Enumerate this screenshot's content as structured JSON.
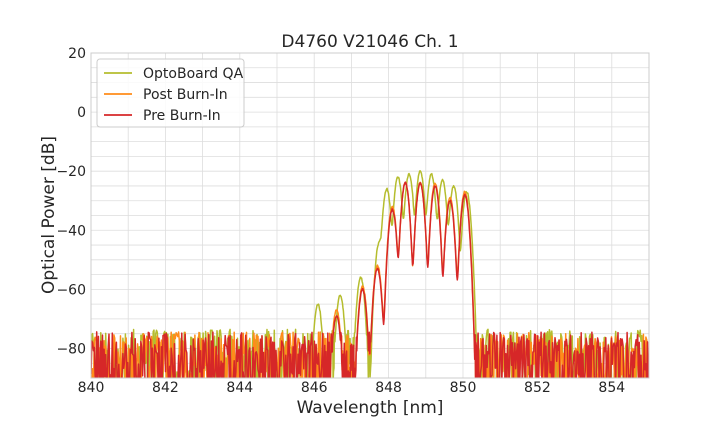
{
  "chart_data": {
    "type": "line",
    "title": "D4760 V21046 Ch. 1",
    "xlabel": "Wavelength [nm]",
    "ylabel": "Optical Power [dB]",
    "xlim": [
      840,
      855
    ],
    "ylim": [
      -90,
      20
    ],
    "xticks": [
      840,
      842,
      844,
      846,
      848,
      850,
      852,
      854
    ],
    "xtick_labels": [
      "840",
      "842",
      "844",
      "846",
      "848",
      "850",
      "852",
      "854"
    ],
    "yticks": [
      20,
      0,
      -20,
      -40,
      -60,
      -80
    ],
    "ytick_labels": [
      "20",
      "0",
      "−20",
      "−40",
      "−60",
      "−80"
    ],
    "grid": true,
    "legend_position": "top-left",
    "series": [
      {
        "name": "OptoBoard QA",
        "color": "#b5bd2e",
        "noise_floor": -79,
        "peaks": [
          [
            846.1,
            -65
          ],
          [
            846.7,
            -62
          ],
          [
            847.25,
            -56
          ],
          [
            847.75,
            -44
          ],
          [
            847.95,
            -26
          ],
          [
            848.25,
            -22
          ],
          [
            848.55,
            -21
          ],
          [
            848.85,
            -20
          ],
          [
            849.15,
            -21
          ],
          [
            849.45,
            -23
          ],
          [
            849.75,
            -25
          ],
          [
            850.1,
            -27
          ]
        ]
      },
      {
        "name": "Post Burn-In",
        "color": "#ff8c1a",
        "noise_floor": -80,
        "peaks": [
          [
            846.6,
            -67
          ],
          [
            847.3,
            -59
          ],
          [
            847.7,
            -52
          ],
          [
            848.1,
            -32
          ],
          [
            848.45,
            -24
          ],
          [
            848.85,
            -24
          ],
          [
            849.25,
            -24
          ],
          [
            849.65,
            -29
          ],
          [
            850.05,
            -27
          ]
        ]
      },
      {
        "name": "Pre Burn-In",
        "color": "#d62728",
        "noise_floor": -80,
        "peaks": [
          [
            846.6,
            -69
          ],
          [
            847.3,
            -60
          ],
          [
            847.7,
            -53
          ],
          [
            848.1,
            -33
          ],
          [
            848.45,
            -24
          ],
          [
            848.85,
            -24
          ],
          [
            849.25,
            -25
          ],
          [
            849.65,
            -30
          ],
          [
            850.05,
            -28
          ]
        ]
      }
    ]
  }
}
